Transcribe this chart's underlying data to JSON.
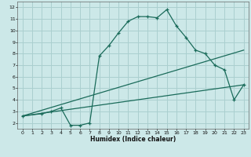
{
  "xlabel": "Humidex (Indice chaleur)",
  "bg_color": "#cce8e8",
  "grid_color": "#aacfcf",
  "line_color": "#1a6b5a",
  "xlim": [
    -0.5,
    23.5
  ],
  "ylim": [
    1.5,
    12.5
  ],
  "xticks": [
    0,
    1,
    2,
    3,
    4,
    5,
    6,
    7,
    8,
    9,
    10,
    11,
    12,
    13,
    14,
    15,
    16,
    17,
    18,
    19,
    20,
    21,
    22,
    23
  ],
  "yticks": [
    2,
    3,
    4,
    5,
    6,
    7,
    8,
    9,
    10,
    11,
    12
  ],
  "series1_x": [
    0,
    2,
    3,
    4,
    5,
    6,
    7,
    8,
    9,
    10,
    11,
    12,
    13,
    14,
    15,
    16,
    17,
    18,
    19,
    20,
    21,
    22,
    23
  ],
  "series1_y": [
    2.6,
    2.8,
    3.0,
    3.3,
    1.8,
    1.8,
    2.0,
    7.8,
    8.7,
    9.8,
    10.8,
    11.2,
    11.2,
    11.1,
    11.8,
    10.4,
    9.4,
    8.3,
    8.0,
    7.0,
    6.6,
    4.0,
    5.3
  ],
  "series2_x": [
    0,
    23
  ],
  "series2_y": [
    2.6,
    8.3
  ],
  "series3_x": [
    0,
    23
  ],
  "series3_y": [
    2.6,
    5.3
  ]
}
